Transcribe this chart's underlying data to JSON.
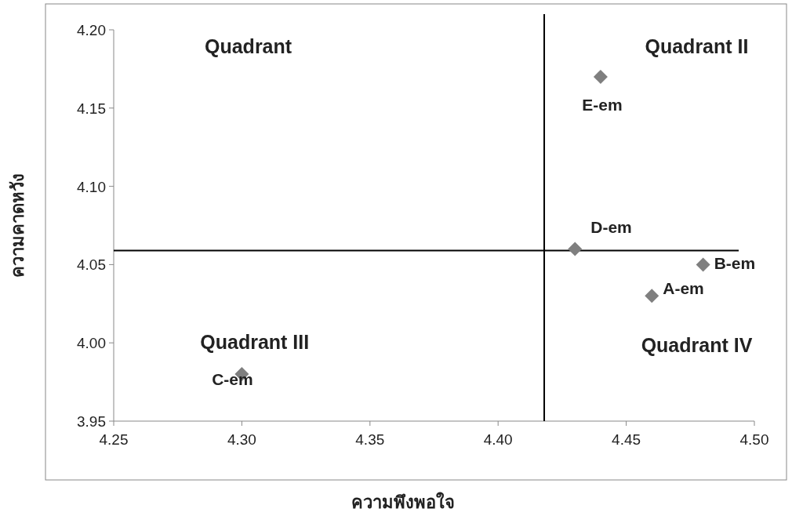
{
  "chart_data": {
    "type": "scatter",
    "xlabel": "ความพึงพอใจ",
    "ylabel": "ความคาดหวัง",
    "x": [
      4.46,
      4.48,
      4.3,
      4.43,
      4.44
    ],
    "series": [
      {
        "color": "#7f7f7f",
        "values": [
          4.03,
          4.05,
          3.98,
          4.06,
          4.17
        ]
      }
    ],
    "marker": "diamond",
    "xlim": [
      4.25,
      4.5
    ],
    "ylim": [
      3.95,
      4.2
    ],
    "xticks": [
      4.25,
      {
        "value": 4.3,
        "label": "4.30"
      },
      4.35,
      {
        "value": 4.4,
        "label": "4.40"
      },
      4.45,
      {
        "value": 4.5,
        "label": "4.50"
      }
    ],
    "yticks": [
      3.95,
      {
        "value": 4.0,
        "label": "4.00"
      },
      4.05,
      {
        "value": 4.1,
        "label": "4.10"
      },
      4.15,
      {
        "value": 4.2,
        "label": "4.20"
      }
    ],
    "ref_lines": [
      {
        "axis": "x",
        "value": 4.418,
        "color": "#000000"
      },
      {
        "axis": "y",
        "value": 4.059,
        "color": "#000000"
      }
    ],
    "annotations": [
      "Quadrant",
      "Quadrant II",
      "Quadrant III",
      "Quadrant IV",
      {
        "text": "A-em",
        "x": 4.46,
        "y": 4.03
      },
      {
        "text": "B-em",
        "x": 4.48,
        "y": 4.05
      },
      {
        "text": "C-em",
        "x": 4.3,
        "y": 3.98
      },
      {
        "text": "D-em",
        "x": 4.43,
        "y": 4.06
      },
      {
        "text": "E-em",
        "x": 4.44,
        "y": 4.17
      }
    ]
  }
}
